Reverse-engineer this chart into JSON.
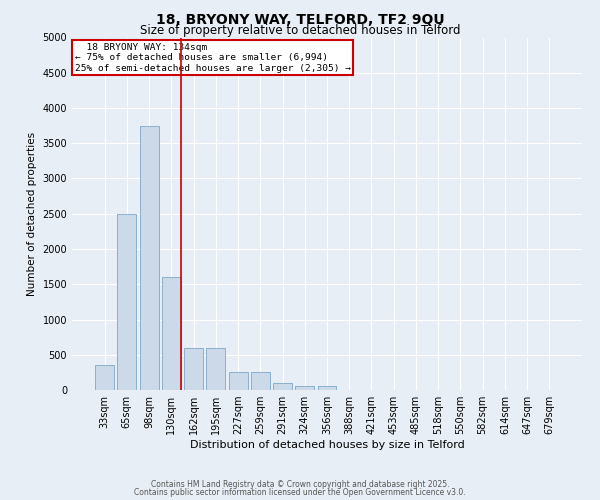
{
  "title_line1": "18, BRYONY WAY, TELFORD, TF2 9QU",
  "title_line2": "Size of property relative to detached houses in Telford",
  "xlabel": "Distribution of detached houses by size in Telford",
  "ylabel": "Number of detached properties",
  "categories": [
    "33sqm",
    "65sqm",
    "98sqm",
    "130sqm",
    "162sqm",
    "195sqm",
    "227sqm",
    "259sqm",
    "291sqm",
    "324sqm",
    "356sqm",
    "388sqm",
    "421sqm",
    "453sqm",
    "485sqm",
    "518sqm",
    "550sqm",
    "582sqm",
    "614sqm",
    "647sqm",
    "679sqm"
  ],
  "values": [
    350,
    2500,
    3750,
    1600,
    600,
    600,
    250,
    250,
    100,
    50,
    50,
    0,
    0,
    0,
    0,
    0,
    0,
    0,
    0,
    0,
    0
  ],
  "bar_color": "#ccd9e8",
  "bar_edge_color": "#7ea8c9",
  "annotation_box_text_line1": "18 BRYONY WAY: 134sqm",
  "annotation_box_text_line2": "← 75% of detached houses are smaller (6,994)",
  "annotation_box_text_line3": "25% of semi-detached houses are larger (2,305) →",
  "red_line_index": 3,
  "annotation_box_color": "#ffffff",
  "annotation_box_edge_color": "#cc0000",
  "red_line_color": "#cc0000",
  "background_color": "#e8eef5",
  "grid_color": "#ffffff",
  "ylim": [
    0,
    5000
  ],
  "yticks": [
    0,
    500,
    1000,
    1500,
    2000,
    2500,
    3000,
    3500,
    4000,
    4500,
    5000
  ],
  "footer_line1": "Contains HM Land Registry data © Crown copyright and database right 2025.",
  "footer_line2": "Contains public sector information licensed under the Open Government Licence v3.0.",
  "title1_fontsize": 10,
  "title2_fontsize": 8.5,
  "ylabel_fontsize": 7.5,
  "xlabel_fontsize": 8,
  "tick_fontsize": 7,
  "annot_fontsize": 6.8,
  "footer_fontsize": 5.5
}
